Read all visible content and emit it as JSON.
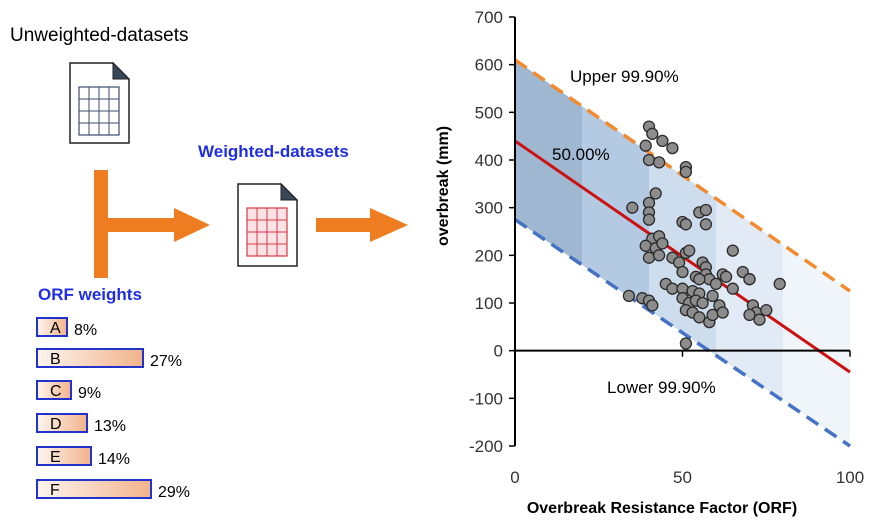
{
  "diagram": {
    "unweighted_label": "Unweighted-datasets",
    "weighted_label": "Weighted-datasets",
    "orf_weights_title": "ORF weights",
    "weights": [
      {
        "letter": "A",
        "pct": "8%",
        "value": 8
      },
      {
        "letter": "B",
        "pct": "27%",
        "value": 27
      },
      {
        "letter": "C",
        "pct": "9%",
        "value": 9
      },
      {
        "letter": "D",
        "pct": "13%",
        "value": 13
      },
      {
        "letter": "E",
        "pct": "14%",
        "value": 14
      },
      {
        "letter": "F",
        "pct": "29%",
        "value": 29
      }
    ]
  },
  "chart_data": {
    "type": "scatter",
    "xlabel": "Overbreak Resistance Factor (ORF)",
    "ylabel": "overbreak (mm)",
    "xlim": [
      0,
      100
    ],
    "ylim": [
      -200,
      700
    ],
    "x_ticks": [
      "0",
      "50",
      "100"
    ],
    "y_ticks": [
      "-200",
      "-100",
      "0",
      "100",
      "200",
      "300",
      "400",
      "500",
      "600",
      "700"
    ],
    "annotations": {
      "upper": "Upper 99.90%",
      "median": "50.00%",
      "lower": "Lower 99.90%"
    },
    "lines": {
      "upper": {
        "x": [
          0,
          100
        ],
        "y": [
          610,
          125
        ],
        "color": "#f28a30"
      },
      "median": {
        "x": [
          0,
          100
        ],
        "y": [
          440,
          -45
        ],
        "color": "#cc1111"
      },
      "lower": {
        "x": [
          0,
          100
        ],
        "y": [
          275,
          -200
        ],
        "color": "#4472c4"
      }
    },
    "points": [
      [
        40,
        470
      ],
      [
        41,
        455
      ],
      [
        44,
        440
      ],
      [
        47,
        425
      ],
      [
        39,
        430
      ],
      [
        40,
        400
      ],
      [
        43,
        395
      ],
      [
        51,
        385
      ],
      [
        51,
        375
      ],
      [
        35,
        300
      ],
      [
        40,
        310
      ],
      [
        40,
        290
      ],
      [
        42,
        330
      ],
      [
        55,
        290
      ],
      [
        57,
        295
      ],
      [
        50,
        270
      ],
      [
        51,
        265
      ],
      [
        57,
        265
      ],
      [
        40,
        275
      ],
      [
        41,
        235
      ],
      [
        43,
        240
      ],
      [
        39,
        220
      ],
      [
        42,
        215
      ],
      [
        44,
        225
      ],
      [
        47,
        195
      ],
      [
        51,
        205
      ],
      [
        52,
        210
      ],
      [
        40,
        195
      ],
      [
        43,
        200
      ],
      [
        49,
        185
      ],
      [
        56,
        185
      ],
      [
        57,
        175
      ],
      [
        57,
        160
      ],
      [
        50,
        165
      ],
      [
        54,
        155
      ],
      [
        58,
        150
      ],
      [
        62,
        160
      ],
      [
        63,
        155
      ],
      [
        65,
        210
      ],
      [
        68,
        165
      ],
      [
        70,
        150
      ],
      [
        60,
        140
      ],
      [
        65,
        130
      ],
      [
        45,
        140
      ],
      [
        47,
        130
      ],
      [
        50,
        130
      ],
      [
        53,
        125
      ],
      [
        55,
        120
      ],
      [
        38,
        110
      ],
      [
        40,
        105
      ],
      [
        41,
        95
      ],
      [
        50,
        110
      ],
      [
        52,
        100
      ],
      [
        54,
        105
      ],
      [
        56,
        100
      ],
      [
        59,
        115
      ],
      [
        61,
        95
      ],
      [
        51,
        85
      ],
      [
        53,
        80
      ],
      [
        55,
        70
      ],
      [
        58,
        60
      ],
      [
        59,
        75
      ],
      [
        62,
        80
      ],
      [
        71,
        95
      ],
      [
        72,
        80
      ],
      [
        70,
        75
      ],
      [
        73,
        65
      ],
      [
        75,
        85
      ],
      [
        79,
        140
      ],
      [
        70,
        150
      ],
      [
        34,
        115
      ],
      [
        51,
        15
      ],
      [
        55,
        150
      ]
    ]
  }
}
